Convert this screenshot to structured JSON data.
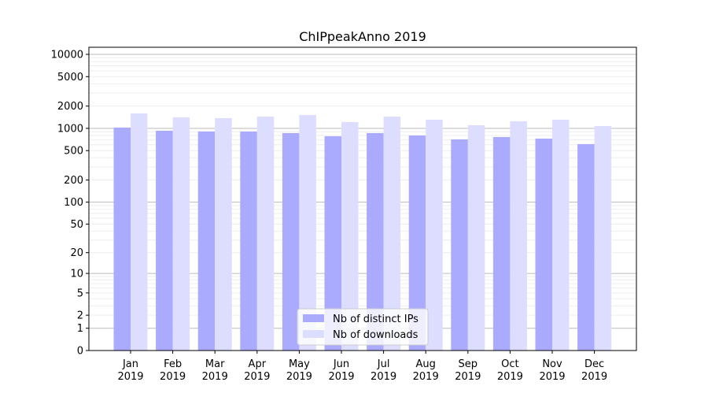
{
  "chart_data": {
    "type": "bar",
    "title": "ChIPpeakAnno 2019",
    "xlabel": "",
    "ylabel": "",
    "yscale": "log(1+y)",
    "ylim": [
      0,
      12000
    ],
    "yticks": [
      0,
      1,
      2,
      5,
      10,
      20,
      50,
      100,
      200,
      500,
      1000,
      2000,
      5000,
      10000
    ],
    "grid": true,
    "legend": "bottom-center",
    "categories": [
      "Jan\n2019",
      "Feb\n2019",
      "Mar\n2019",
      "Apr\n2019",
      "May\n2019",
      "Jun\n2019",
      "Jul\n2019",
      "Aug\n2019",
      "Sep\n2019",
      "Oct\n2019",
      "Nov\n2019",
      "Dec\n2019"
    ],
    "series": [
      {
        "name": "Nb of distinct IPs",
        "color": "#aaaaff",
        "values": [
          1025,
          929,
          907,
          907,
          864,
          783,
          864,
          802,
          710,
          764,
          727,
          613
        ]
      },
      {
        "name": "Nb of downloads",
        "color": "#ddddff",
        "values": [
          1592,
          1409,
          1374,
          1445,
          1517,
          1217,
          1445,
          1309,
          1103,
          1247,
          1309,
          1076
        ]
      }
    ]
  }
}
